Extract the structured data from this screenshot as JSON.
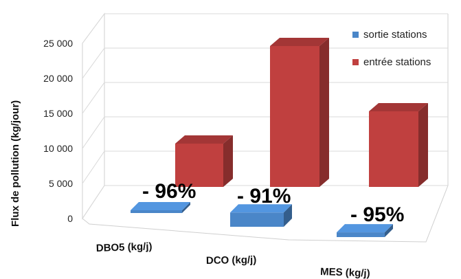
{
  "chart_data": {
    "type": "bar",
    "ylabel": "Flux de pollution (kg/jour)",
    "ylim": [
      0,
      25000
    ],
    "yticks": [
      "0",
      "5 000",
      "10 000",
      "15 000",
      "20 000",
      "25 000"
    ],
    "categories": [
      "DBO5 (kg/j)",
      "DCO (kg/j)",
      "MES (kg/j)"
    ],
    "series": [
      {
        "name": "sortie stations",
        "color": "#4a86c8",
        "values": [
          300,
          1800,
          600
        ]
      },
      {
        "name": "entrée stations",
        "color": "#c0403f",
        "values": [
          6300,
          20500,
          11000
        ]
      }
    ],
    "reductions": [
      "- 96%",
      "- 91%",
      "- 95%"
    ],
    "legend_position": "top-right",
    "grid": true
  }
}
